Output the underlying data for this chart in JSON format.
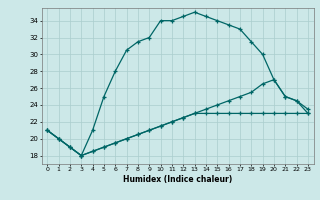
{
  "xlabel": "Humidex (Indice chaleur)",
  "bg_color": "#cce8e8",
  "grid_color": "#aacece",
  "line_color": "#006666",
  "xlim": [
    -0.5,
    23.5
  ],
  "ylim": [
    17.0,
    35.5
  ],
  "xticks": [
    0,
    1,
    2,
    3,
    4,
    5,
    6,
    7,
    8,
    9,
    10,
    11,
    12,
    13,
    14,
    15,
    16,
    17,
    18,
    19,
    20,
    21,
    22,
    23
  ],
  "yticks": [
    18,
    20,
    22,
    24,
    26,
    28,
    30,
    32,
    34
  ],
  "curve1_x": [
    0,
    1,
    2,
    3,
    4,
    5,
    6,
    7,
    8,
    9,
    10,
    11,
    12,
    13,
    14,
    15,
    16,
    17,
    18,
    19,
    20,
    21,
    22,
    23
  ],
  "curve1_y": [
    21.0,
    20.0,
    19.0,
    18.0,
    21.0,
    25.0,
    28.0,
    30.5,
    31.5,
    32.0,
    34.0,
    34.0,
    34.5,
    35.0,
    34.5,
    34.0,
    33.5,
    33.0,
    31.5,
    30.0,
    27.0,
    25.0,
    24.5,
    23.0
  ],
  "curve2_x": [
    0,
    1,
    2,
    3,
    4,
    5,
    6,
    7,
    8,
    9,
    10,
    11,
    12,
    13,
    14,
    15,
    16,
    17,
    18,
    19,
    20,
    21,
    22,
    23
  ],
  "curve2_y": [
    21.0,
    20.0,
    19.0,
    18.0,
    18.5,
    19.0,
    19.5,
    20.0,
    20.5,
    21.0,
    21.5,
    22.0,
    22.5,
    23.0,
    23.5,
    24.0,
    24.5,
    25.0,
    25.5,
    26.5,
    27.0,
    25.0,
    24.5,
    23.5
  ],
  "curve3_x": [
    0,
    1,
    2,
    3,
    4,
    5,
    6,
    7,
    8,
    9,
    10,
    11,
    12,
    13,
    14,
    15,
    16,
    17,
    18,
    19,
    20,
    21,
    22,
    23
  ],
  "curve3_y": [
    21.0,
    20.0,
    19.0,
    18.0,
    18.5,
    19.0,
    19.5,
    20.0,
    20.5,
    21.0,
    21.5,
    22.0,
    22.5,
    23.0,
    23.0,
    23.0,
    23.0,
    23.0,
    23.0,
    23.0,
    23.0,
    23.0,
    23.0,
    23.0
  ]
}
